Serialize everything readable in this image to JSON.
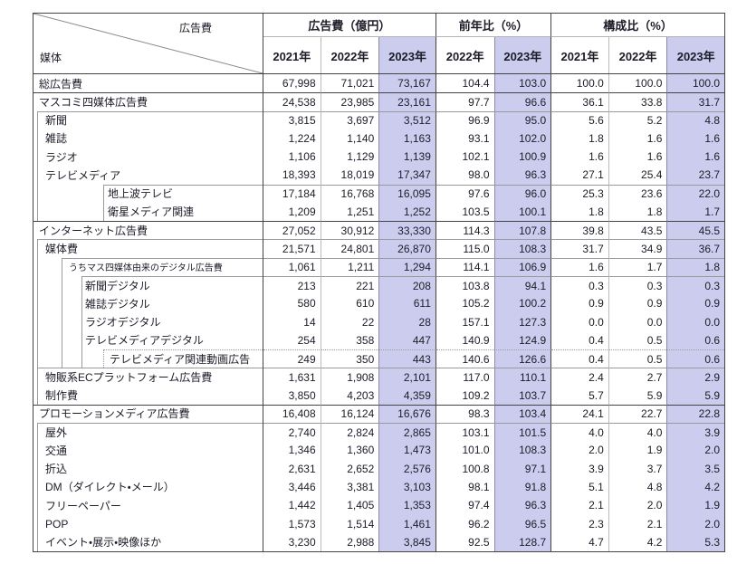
{
  "table": {
    "corner": {
      "top_label": "広告費",
      "bottom_label": "媒体"
    },
    "highlight_color": "#ccccee",
    "col_groups": [
      {
        "label": "広告費（億円）",
        "years": [
          "2021年",
          "2022年",
          "2023年"
        ]
      },
      {
        "label": "前年比（%）",
        "years": [
          "2022年",
          "2023年"
        ]
      },
      {
        "label": "構成比（%）",
        "years": [
          "2021年",
          "2022年",
          "2023年"
        ]
      }
    ],
    "rows": [
      {
        "label": "総広告費",
        "indent": 6,
        "rails": [],
        "dottedRails": [],
        "top": "none",
        "topStart": 0,
        "small": false,
        "values": [
          "67,998",
          "71,021",
          "73,167",
          "104.4",
          "103.0",
          "100.0",
          "100.0",
          "100.0"
        ]
      },
      {
        "label": "マスコミ四媒体広告費",
        "indent": 6,
        "rails": [],
        "dottedRails": [],
        "top": "dark",
        "topStart": 0,
        "small": false,
        "values": [
          "24,538",
          "23,985",
          "23,161",
          "97.7",
          "96.6",
          "36.1",
          "33.8",
          "31.7"
        ]
      },
      {
        "label": "新聞",
        "indent": 13,
        "rails": [
          4
        ],
        "dottedRails": [],
        "top": "light",
        "topStart": 4,
        "small": false,
        "values": [
          "3,815",
          "3,697",
          "3,512",
          "96.9",
          "95.0",
          "5.6",
          "5.2",
          "4.8"
        ]
      },
      {
        "label": "雑誌",
        "indent": 13,
        "rails": [
          4
        ],
        "dottedRails": [],
        "top": "none",
        "topStart": 0,
        "small": false,
        "values": [
          "1,224",
          "1,140",
          "1,163",
          "93.1",
          "102.0",
          "1.8",
          "1.6",
          "1.6"
        ]
      },
      {
        "label": "ラジオ",
        "indent": 13,
        "rails": [
          4
        ],
        "dottedRails": [],
        "top": "none",
        "topStart": 0,
        "small": false,
        "values": [
          "1,106",
          "1,129",
          "1,139",
          "102.1",
          "100.9",
          "1.6",
          "1.6",
          "1.6"
        ]
      },
      {
        "label": "テレビメディア",
        "indent": 13,
        "rails": [
          4
        ],
        "dottedRails": [],
        "top": "none",
        "topStart": 0,
        "small": false,
        "values": [
          "18,393",
          "18,019",
          "17,347",
          "98.0",
          "96.3",
          "27.1",
          "25.4",
          "23.7"
        ]
      },
      {
        "label": "地上波テレビ",
        "indent": 82,
        "rails": [
          4,
          77
        ],
        "dottedRails": [],
        "top": "light",
        "topStart": 77,
        "small": false,
        "values": [
          "17,184",
          "16,768",
          "16,095",
          "97.6",
          "96.0",
          "25.3",
          "23.6",
          "22.0"
        ]
      },
      {
        "label": "衛星メディア関連",
        "indent": 82,
        "rails": [
          4,
          77
        ],
        "dottedRails": [],
        "top": "none",
        "topStart": 0,
        "small": false,
        "values": [
          "1,209",
          "1,251",
          "1,252",
          "103.5",
          "100.1",
          "1.8",
          "1.8",
          "1.7"
        ]
      },
      {
        "label": "インターネット広告費",
        "indent": 6,
        "rails": [],
        "dottedRails": [],
        "top": "dark",
        "topStart": 0,
        "small": false,
        "values": [
          "27,052",
          "30,912",
          "33,330",
          "114.3",
          "107.8",
          "39.8",
          "43.5",
          "45.5"
        ]
      },
      {
        "label": "媒体費",
        "indent": 13,
        "rails": [
          4
        ],
        "dottedRails": [],
        "top": "light",
        "topStart": 4,
        "small": false,
        "values": [
          "21,571",
          "24,801",
          "26,870",
          "115.0",
          "108.3",
          "31.7",
          "34.9",
          "36.7"
        ]
      },
      {
        "label": "うちマス四媒体由来のデジタル広告費",
        "indent": 39,
        "rails": [
          4,
          31
        ],
        "dottedRails": [],
        "top": "light",
        "topStart": 31,
        "small": true,
        "values": [
          "1,061",
          "1,211",
          "1,294",
          "114.1",
          "106.9",
          "1.6",
          "1.7",
          "1.8"
        ]
      },
      {
        "label": "新聞デジタル",
        "indent": 57,
        "rails": [
          4,
          31,
          53
        ],
        "dottedRails": [],
        "top": "light",
        "topStart": 53,
        "small": false,
        "values": [
          "213",
          "221",
          "208",
          "103.8",
          "94.1",
          "0.3",
          "0.3",
          "0.3"
        ]
      },
      {
        "label": "雑誌デジタル",
        "indent": 57,
        "rails": [
          4,
          31,
          53
        ],
        "dottedRails": [],
        "top": "none",
        "topStart": 0,
        "small": false,
        "values": [
          "580",
          "610",
          "611",
          "105.2",
          "100.2",
          "0.9",
          "0.9",
          "0.9"
        ]
      },
      {
        "label": "ラジオデジタル",
        "indent": 57,
        "rails": [
          4,
          31,
          53
        ],
        "dottedRails": [],
        "top": "none",
        "topStart": 0,
        "small": false,
        "values": [
          "14",
          "22",
          "28",
          "157.1",
          "127.3",
          "0.0",
          "0.0",
          "0.0"
        ]
      },
      {
        "label": "テレビメディアデジタル",
        "indent": 57,
        "rails": [
          4,
          31,
          53
        ],
        "dottedRails": [],
        "top": "none",
        "topStart": 0,
        "small": false,
        "values": [
          "254",
          "358",
          "447",
          "140.9",
          "124.9",
          "0.4",
          "0.5",
          "0.6"
        ]
      },
      {
        "label": "テレビメディア関連動画広告",
        "indent": 84,
        "rails": [
          4,
          31,
          53
        ],
        "dottedRails": [
          77
        ],
        "top": "dotted",
        "topStart": 77,
        "small": false,
        "values": [
          "249",
          "350",
          "443",
          "140.6",
          "126.6",
          "0.4",
          "0.5",
          "0.6"
        ]
      },
      {
        "label": "物販系ECプラットフォーム広告費",
        "indent": 13,
        "rails": [
          4
        ],
        "dottedRails": [],
        "top": "light",
        "topStart": 4,
        "small": false,
        "values": [
          "1,631",
          "1,908",
          "2,101",
          "117.0",
          "110.1",
          "2.4",
          "2.7",
          "2.9"
        ]
      },
      {
        "label": "制作費",
        "indent": 13,
        "rails": [
          4
        ],
        "dottedRails": [],
        "top": "none",
        "topStart": 0,
        "small": false,
        "values": [
          "3,850",
          "4,203",
          "4,359",
          "109.2",
          "103.7",
          "5.7",
          "5.9",
          "5.9"
        ]
      },
      {
        "label": "プロモーションメディア広告費",
        "indent": 6,
        "rails": [],
        "dottedRails": [],
        "top": "dark",
        "topStart": 0,
        "small": false,
        "values": [
          "16,408",
          "16,124",
          "16,676",
          "98.3",
          "103.4",
          "24.1",
          "22.7",
          "22.8"
        ]
      },
      {
        "label": "屋外",
        "indent": 13,
        "rails": [
          4
        ],
        "dottedRails": [],
        "top": "light",
        "topStart": 4,
        "small": false,
        "values": [
          "2,740",
          "2,824",
          "2,865",
          "103.1",
          "101.5",
          "4.0",
          "4.0",
          "3.9"
        ]
      },
      {
        "label": "交通",
        "indent": 13,
        "rails": [
          4
        ],
        "dottedRails": [],
        "top": "none",
        "topStart": 0,
        "small": false,
        "values": [
          "1,346",
          "1,360",
          "1,473",
          "101.0",
          "108.3",
          "2.0",
          "1.9",
          "2.0"
        ]
      },
      {
        "label": "折込",
        "indent": 13,
        "rails": [
          4
        ],
        "dottedRails": [],
        "top": "none",
        "topStart": 0,
        "small": false,
        "values": [
          "2,631",
          "2,652",
          "2,576",
          "100.8",
          "97.1",
          "3.9",
          "3.7",
          "3.5"
        ]
      },
      {
        "label": "DM（ダイレクト・メール）",
        "indent": 13,
        "rails": [
          4
        ],
        "dottedRails": [],
        "top": "none",
        "topStart": 0,
        "small": false,
        "values": [
          "3,446",
          "3,381",
          "3,103",
          "98.1",
          "91.8",
          "5.1",
          "4.8",
          "4.2"
        ]
      },
      {
        "label": "フリーペーパー",
        "indent": 13,
        "rails": [
          4
        ],
        "dottedRails": [],
        "top": "none",
        "topStart": 0,
        "small": false,
        "values": [
          "1,442",
          "1,405",
          "1,353",
          "97.4",
          "96.3",
          "2.1",
          "2.0",
          "1.9"
        ]
      },
      {
        "label": "POP",
        "indent": 13,
        "rails": [
          4
        ],
        "dottedRails": [],
        "top": "none",
        "topStart": 0,
        "small": false,
        "values": [
          "1,573",
          "1,514",
          "1,461",
          "96.2",
          "96.5",
          "2.3",
          "2.1",
          "2.0"
        ]
      },
      {
        "label": "イベント・展示・映像ほか",
        "indent": 13,
        "rails": [
          4
        ],
        "dottedRails": [],
        "top": "none",
        "topStart": 0,
        "small": false,
        "values": [
          "3,230",
          "2,988",
          "3,845",
          "92.5",
          "128.7",
          "4.7",
          "4.2",
          "5.3"
        ]
      }
    ]
  }
}
